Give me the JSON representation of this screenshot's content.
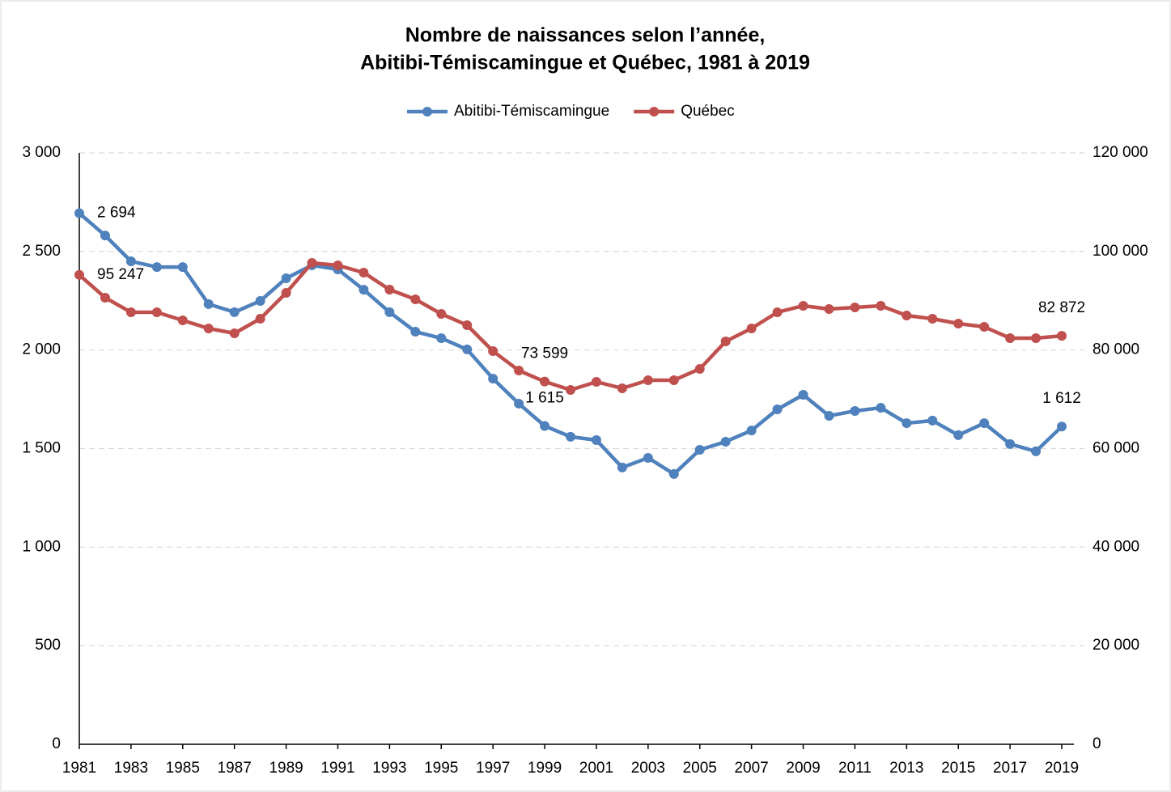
{
  "chart_data": {
    "type": "line",
    "title": "Nombre de naissances selon l’année,",
    "subtitle": "Abitibi-Témiscamingue et Québec, 1981 à 2019",
    "x": [
      1981,
      1982,
      1983,
      1984,
      1985,
      1986,
      1987,
      1988,
      1989,
      1990,
      1991,
      1992,
      1993,
      1994,
      1995,
      1996,
      1997,
      1998,
      1999,
      2000,
      2001,
      2002,
      2003,
      2004,
      2005,
      2006,
      2007,
      2008,
      2009,
      2010,
      2011,
      2012,
      2013,
      2014,
      2015,
      2016,
      2017,
      2018,
      2019
    ],
    "xlim": [
      1981,
      2019
    ],
    "xticks": [
      1981,
      1983,
      1985,
      1987,
      1989,
      1991,
      1993,
      1995,
      1997,
      1999,
      2001,
      2003,
      2005,
      2007,
      2009,
      2011,
      2013,
      2015,
      2017,
      2019
    ],
    "ylim": [
      0,
      3000
    ],
    "yticks": [
      0,
      500,
      {
        "value": 1000,
        "label": "1 000"
      },
      {
        "value": 1500,
        "label": "1 500"
      },
      {
        "value": 2000,
        "label": "2 000"
      },
      {
        "value": 2500,
        "label": "2 500"
      },
      {
        "value": 3000,
        "label": "3 000"
      }
    ],
    "y2lim": [
      0,
      120000
    ],
    "y2ticks": [
      0,
      {
        "value": 20000,
        "label": "20 000"
      },
      {
        "value": 40000,
        "label": "40 000"
      },
      {
        "value": 60000,
        "label": "60 000"
      },
      {
        "value": 80000,
        "label": "80 000"
      },
      {
        "value": 100000,
        "label": "100 000"
      },
      {
        "value": 120000,
        "label": "120 000"
      }
    ],
    "grid": true,
    "legend": "top",
    "series": [
      {
        "name": "Abitibi-Témiscamingue",
        "color": "#4f81bd",
        "values": [
          2694,
          2581,
          2450,
          2421,
          2421,
          2233,
          2192,
          2249,
          2364,
          2430,
          2409,
          2306,
          2192,
          2093,
          2060,
          2003,
          1855,
          1728,
          1615,
          1560,
          1543,
          1404,
          1453,
          1371,
          1494,
          1535,
          1592,
          1699,
          1773,
          1666,
          1691,
          1707,
          1629,
          1642,
          1568,
          1629,
          1523,
          1486,
          1612
        ],
        "value_labels": [
          "2 694",
          null,
          null,
          null,
          null,
          null,
          null,
          null,
          null,
          null,
          null,
          null,
          null,
          null,
          null,
          null,
          null,
          null,
          "1 615",
          null,
          null,
          null,
          null,
          null,
          null,
          null,
          null,
          null,
          null,
          null,
          null,
          null,
          null,
          null,
          null,
          null,
          null,
          null,
          "1 612"
        ]
      },
      {
        "name": "Québec",
        "color": "#c0504d",
        "axis": "y2",
        "values": [
          95247,
          90616,
          87662,
          87662,
          86020,
          84378,
          83393,
          86348,
          91601,
          97675,
          97183,
          95705,
          92258,
          90288,
          87333,
          85035,
          79782,
          75842,
          73599,
          71902,
          73544,
          72230,
          73872,
          73872,
          76170,
          81752,
          84378,
          87662,
          88975,
          88319,
          88647,
          88975,
          87005,
          86348,
          85363,
          84706,
          82408,
          82408,
          82872
        ],
        "value_labels": [
          "95 247",
          null,
          null,
          null,
          null,
          null,
          null,
          null,
          null,
          null,
          null,
          null,
          null,
          null,
          null,
          null,
          null,
          null,
          "73 599",
          null,
          null,
          null,
          null,
          null,
          null,
          null,
          null,
          null,
          null,
          null,
          null,
          null,
          null,
          null,
          null,
          null,
          null,
          null,
          "82 872"
        ]
      }
    ]
  }
}
